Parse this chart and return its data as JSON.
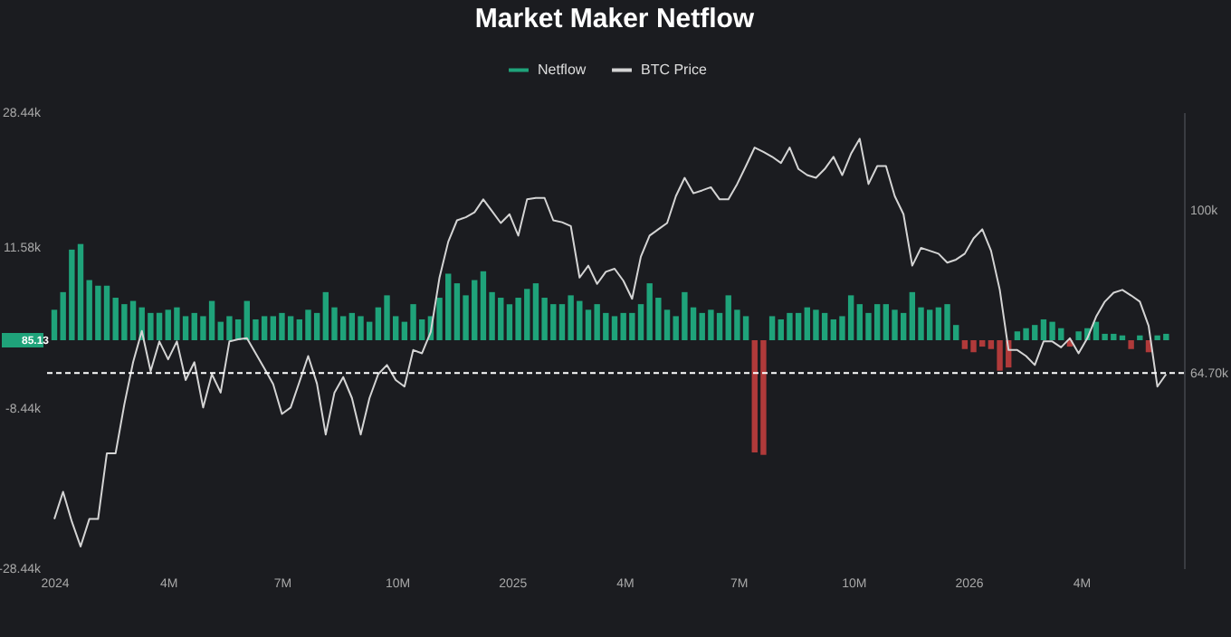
{
  "chart_data": {
    "type": "bar",
    "title": "Market Maker Netflow",
    "legend": "top",
    "log": "y2",
    "x": [
      "2024-01-01",
      "2024-01-08",
      "2024-01-15",
      "2024-01-22",
      "2024-01-29",
      "2024-02-05",
      "2024-02-12",
      "2024-02-19",
      "2024-02-26",
      "2024-03-04",
      "2024-03-11",
      "2024-03-18",
      "2024-03-25",
      "2024-04-01",
      "2024-04-08",
      "2024-04-15",
      "2024-04-22",
      "2024-04-29",
      "2024-05-06",
      "2024-05-13",
      "2024-05-20",
      "2024-05-27",
      "2024-06-03",
      "2024-06-10",
      "2024-06-17",
      "2024-06-24",
      "2024-07-01",
      "2024-07-08",
      "2024-07-15",
      "2024-07-22",
      "2024-07-29",
      "2024-08-05",
      "2024-08-12",
      "2024-08-19",
      "2024-08-26",
      "2024-09-02",
      "2024-09-09",
      "2024-09-16",
      "2024-09-23",
      "2024-09-30",
      "2024-10-07",
      "2024-10-14",
      "2024-10-21",
      "2024-10-28",
      "2024-11-04",
      "2024-11-11",
      "2024-11-18",
      "2024-11-25",
      "2024-12-02",
      "2024-12-09",
      "2024-12-16",
      "2024-12-23",
      "2024-12-30",
      "2025-01-06",
      "2025-01-13",
      "2025-01-20",
      "2025-01-27",
      "2025-02-03",
      "2025-02-10",
      "2025-02-17",
      "2025-02-24",
      "2025-03-03",
      "2025-03-10",
      "2025-03-17",
      "2025-03-24",
      "2025-03-31",
      "2025-04-07",
      "2025-04-14",
      "2025-04-21",
      "2025-04-28",
      "2025-05-05",
      "2025-05-12",
      "2025-05-19",
      "2025-05-26",
      "2025-06-02",
      "2025-06-09",
      "2025-06-16",
      "2025-06-23",
      "2025-06-30",
      "2025-07-07",
      "2025-07-14",
      "2025-07-21",
      "2025-07-28",
      "2025-08-04",
      "2025-08-11",
      "2025-08-18",
      "2025-08-25",
      "2025-09-01",
      "2025-09-08",
      "2025-09-15",
      "2025-09-22",
      "2025-09-29",
      "2025-10-06",
      "2025-10-13",
      "2025-10-20",
      "2025-10-27",
      "2025-11-03",
      "2025-11-10",
      "2025-11-17",
      "2025-11-24",
      "2025-12-01",
      "2025-12-08",
      "2025-12-15",
      "2025-12-22",
      "2025-12-29",
      "2026-01-05",
      "2026-01-12",
      "2026-01-19",
      "2026-01-26",
      "2026-02-02",
      "2026-02-09",
      "2026-02-16",
      "2026-02-23",
      "2026-03-02",
      "2026-03-09",
      "2026-03-16",
      "2026-03-23",
      "2026-03-30",
      "2026-04-06",
      "2026-04-13",
      "2026-04-20",
      "2026-04-27",
      "2026-05-04",
      "2026-05-11",
      "2026-05-18",
      "2026-05-25",
      "2026-06-01",
      "2026-06-08"
    ],
    "xlim": [
      "2024-01-01",
      "2026-06-15"
    ],
    "xticks": [
      {
        "value": "2024-01-01",
        "label": "2024"
      },
      {
        "value": "2024-04-01",
        "label": "4M"
      },
      {
        "value": "2024-07-01",
        "label": "7M"
      },
      {
        "value": "2024-10-01",
        "label": "10M"
      },
      {
        "value": "2025-01-01",
        "label": "2025"
      },
      {
        "value": "2025-04-01",
        "label": "4M"
      },
      {
        "value": "2025-07-01",
        "label": "7M"
      },
      {
        "value": "2025-10-01",
        "label": "10M"
      },
      {
        "value": "2026-01-01",
        "label": "2026"
      },
      {
        "value": "2026-04-01",
        "label": "4M"
      }
    ],
    "ylim": [
      -28440,
      28440
    ],
    "yticks": [
      {
        "value": 28440,
        "label": "28.44k"
      },
      {
        "value": 11580,
        "label": "11.58k"
      },
      {
        "value": -8440,
        "label": "-8.44k"
      },
      {
        "value": -28440,
        "label": "-28.44k"
      }
    ],
    "y2lim": [
      38400,
      129900
    ],
    "y2ticks": [
      {
        "value": 100000,
        "label": "100k"
      },
      {
        "value": 64700,
        "label": "64.70k"
      }
    ],
    "annotations": [
      "85.13"
    ],
    "series": [
      {
        "name": "Netflow",
        "color": "#1fa37a",
        "colors": [
          "#1fa37a",
          "#1fa37a",
          "#1fa37a",
          "#1fa37a",
          "#1fa37a",
          "#1fa37a",
          "#1fa37a",
          "#1fa37a",
          "#1fa37a",
          "#1fa37a",
          "#1fa37a",
          "#1fa37a",
          "#1fa37a",
          "#1fa37a",
          "#1fa37a",
          "#1fa37a",
          "#1fa37a",
          "#1fa37a",
          "#1fa37a",
          "#1fa37a",
          "#1fa37a",
          "#1fa37a",
          "#1fa37a",
          "#1fa37a",
          "#1fa37a",
          "#1fa37a",
          "#1fa37a",
          "#1fa37a",
          "#1fa37a",
          "#1fa37a",
          "#1fa37a",
          "#1fa37a",
          "#1fa37a",
          "#1fa37a",
          "#1fa37a",
          "#1fa37a",
          "#1fa37a",
          "#1fa37a",
          "#1fa37a",
          "#1fa37a",
          "#1fa37a",
          "#1fa37a",
          "#1fa37a",
          "#1fa37a",
          "#1fa37a",
          "#1fa37a",
          "#1fa37a",
          "#1fa37a",
          "#1fa37a",
          "#1fa37a",
          "#1fa37a",
          "#1fa37a",
          "#1fa37a",
          "#1fa37a",
          "#1fa37a",
          "#1fa37a",
          "#1fa37a",
          "#1fa37a",
          "#1fa37a",
          "#1fa37a",
          "#1fa37a",
          "#1fa37a",
          "#1fa37a",
          "#1fa37a",
          "#1fa37a",
          "#1fa37a",
          "#1fa37a",
          "#1fa37a",
          "#1fa37a",
          "#1fa37a",
          "#1fa37a",
          "#1fa37a",
          "#1fa37a",
          "#1fa37a",
          "#1fa37a",
          "#1fa37a",
          "#1fa37a",
          "#1fa37a",
          "#1fa37a",
          "#1fa37a",
          "#b03a3a",
          "#b03a3a",
          "#1fa37a",
          "#1fa37a",
          "#1fa37a",
          "#1fa37a",
          "#1fa37a",
          "#1fa37a",
          "#1fa37a",
          "#1fa37a",
          "#1fa37a",
          "#1fa37a",
          "#1fa37a",
          "#1fa37a",
          "#1fa37a",
          "#1fa37a",
          "#1fa37a",
          "#1fa37a",
          "#1fa37a",
          "#1fa37a",
          "#1fa37a",
          "#1fa37a",
          "#1fa37a",
          "#1fa37a",
          "#b03a3a",
          "#b03a3a",
          "#b03a3a",
          "#b03a3a",
          "#b03a3a",
          "#b03a3a",
          "#1fa37a",
          "#1fa37a",
          "#1fa37a",
          "#1fa37a",
          "#1fa37a",
          "#1fa37a",
          "#b03a3a",
          "#1fa37a",
          "#1fa37a",
          "#1fa37a",
          "#1fa37a",
          "#1fa37a",
          "#1fa37a",
          "#b03a3a",
          "#1fa37a",
          "#b03a3a",
          "#1fa37a",
          "#1fa37a"
        ],
        "values": [
          3800,
          6000,
          11300,
          12000,
          7500,
          6800,
          6800,
          5300,
          4500,
          4900,
          4100,
          3400,
          3400,
          3800,
          4100,
          3000,
          3400,
          3000,
          4900,
          2300,
          3000,
          2600,
          4900,
          2600,
          3000,
          3000,
          3400,
          3000,
          2600,
          3800,
          3400,
          6000,
          4100,
          3000,
          3400,
          3000,
          2300,
          4100,
          5600,
          3000,
          2300,
          4500,
          2600,
          3000,
          5300,
          8300,
          7100,
          5600,
          7500,
          8600,
          6000,
          5300,
          4500,
          5300,
          6400,
          7100,
          5300,
          4500,
          4500,
          5600,
          4900,
          3800,
          4500,
          3400,
          3000,
          3400,
          3400,
          4500,
          7100,
          5300,
          3800,
          3000,
          6000,
          4100,
          3400,
          3800,
          3400,
          5600,
          3800,
          3000,
          -14000,
          -14300,
          3000,
          2600,
          3400,
          3400,
          4100,
          3800,
          3400,
          2600,
          3000,
          5600,
          4500,
          3400,
          4500,
          4500,
          3800,
          3400,
          6000,
          4100,
          3800,
          4100,
          4500,
          1900,
          -1100,
          -1500,
          -800,
          -1100,
          -3800,
          -3400,
          1100,
          1500,
          1900,
          2600,
          2300,
          1500,
          -800,
          1100,
          1500,
          2300,
          800,
          800,
          600,
          -1100,
          600,
          -1500,
          600,
          800
        ]
      },
      {
        "name": "BTC Price",
        "type": "line",
        "axis": "y2",
        "color": "#d4d4d4",
        "values": [
          43800,
          47100,
          43500,
          40700,
          43800,
          43800,
          52200,
          52200,
          59500,
          66600,
          72400,
          65000,
          70400,
          67100,
          70400,
          63500,
          66600,
          59000,
          64500,
          61400,
          70400,
          70800,
          71000,
          68200,
          65500,
          62800,
          58000,
          59000,
          63200,
          67700,
          62900,
          54900,
          61400,
          64000,
          60500,
          54900,
          60500,
          64500,
          66100,
          63500,
          62400,
          68800,
          68200,
          72200,
          83500,
          91900,
          97300,
          98100,
          99400,
          102900,
          99700,
          96600,
          98900,
          93400,
          102900,
          103300,
          103300,
          97300,
          96800,
          95800,
          83500,
          86200,
          82100,
          84800,
          85500,
          82800,
          78900,
          88300,
          93400,
          95000,
          96600,
          103800,
          109000,
          104600,
          105400,
          106300,
          102900,
          102900,
          107200,
          112500,
          118200,
          116800,
          115300,
          113400,
          118200,
          111600,
          109800,
          109000,
          111600,
          115300,
          109800,
          116200,
          121000,
          107200,
          112500,
          112500,
          103800,
          98900,
          86200,
          90400,
          89700,
          89000,
          86900,
          87600,
          89000,
          92700,
          95000,
          89700,
          80800,
          68800,
          68800,
          67700,
          66100,
          70400,
          70400,
          69300,
          71000,
          68200,
          71000,
          75200,
          78300,
          80200,
          80800,
          79600,
          78300,
          73400,
          62400,
          64500
        ]
      }
    ],
    "ref_lines": [
      {
        "axis": "y2",
        "value": 64700,
        "color": "#ffffff",
        "line_style": "dashed"
      }
    ]
  }
}
